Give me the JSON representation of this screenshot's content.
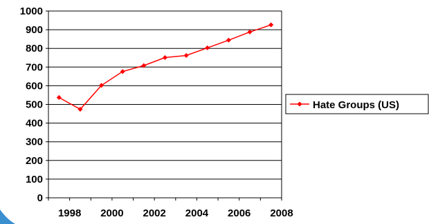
{
  "chart_data": {
    "type": "line",
    "title": "",
    "xlabel": "",
    "ylabel": "",
    "x": [
      1997,
      1998,
      1999,
      2000,
      2001,
      2002,
      2003,
      2004,
      2005,
      2006,
      2007
    ],
    "x_tick_labels": [
      "1998",
      "2000",
      "2002",
      "2004",
      "2006",
      "2008"
    ],
    "y_tick_labels": [
      "0",
      "100",
      "200",
      "300",
      "400",
      "500",
      "600",
      "700",
      "800",
      "900",
      "1000"
    ],
    "ylim": [
      0,
      1000
    ],
    "grid": "horizontal",
    "legend_position": "right",
    "series": [
      {
        "name": "Hate Groups (US)",
        "color": "#ff0000",
        "values": [
          537,
          474,
          602,
          676,
          708,
          751,
          762,
          803,
          844,
          888,
          926
        ]
      }
    ]
  },
  "decoration": {
    "corner_accent_color": "#3a8fd1"
  }
}
